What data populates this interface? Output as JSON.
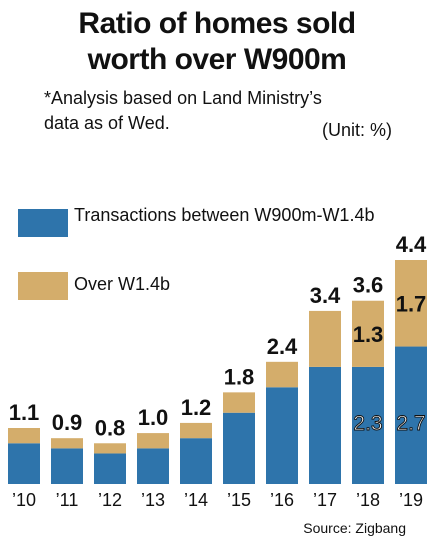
{
  "title_line1": "Ratio of homes sold",
  "title_line2": "worth over W900m",
  "note_line1": "*Analysis based on Land Ministry’s",
  "note_line2": "data as of Wed.",
  "unit": "(Unit: %)",
  "source": "Source: Zigbang",
  "colors": {
    "lower": "#2e74ab",
    "upper": "#d4ad6b"
  },
  "chart_data": {
    "type": "bar",
    "stacked": true,
    "categories": [
      "’10",
      "’11",
      "’12",
      "’13",
      "’14",
      "’15",
      "’16",
      "’17",
      "’18",
      "’19"
    ],
    "series": [
      {
        "name": "Transactions between W900m-W1.4b",
        "values": [
          0.8,
          0.7,
          0.6,
          0.7,
          0.9,
          1.4,
          1.9,
          2.3,
          2.3,
          2.7
        ]
      },
      {
        "name": "Over W1.4b",
        "values": [
          0.3,
          0.2,
          0.2,
          0.3,
          0.3,
          0.4,
          0.5,
          1.1,
          1.3,
          1.7
        ]
      }
    ],
    "totals": [
      1.1,
      0.9,
      0.8,
      1.0,
      1.2,
      1.8,
      2.4,
      3.4,
      3.6,
      4.4
    ],
    "total_labels": [
      "1.1",
      "0.9",
      "0.8",
      "1.0",
      "1.2",
      "1.8",
      "2.4",
      "3.4",
      "3.6",
      "4.4"
    ],
    "segment_labels": [
      {
        "category": "’18",
        "lower": "2.3",
        "upper": "1.3"
      },
      {
        "category": "’19",
        "lower": "2.7",
        "upper": "1.7"
      }
    ],
    "ylim": [
      0,
      4.4
    ],
    "grid": false,
    "legend_position": "top-left"
  }
}
